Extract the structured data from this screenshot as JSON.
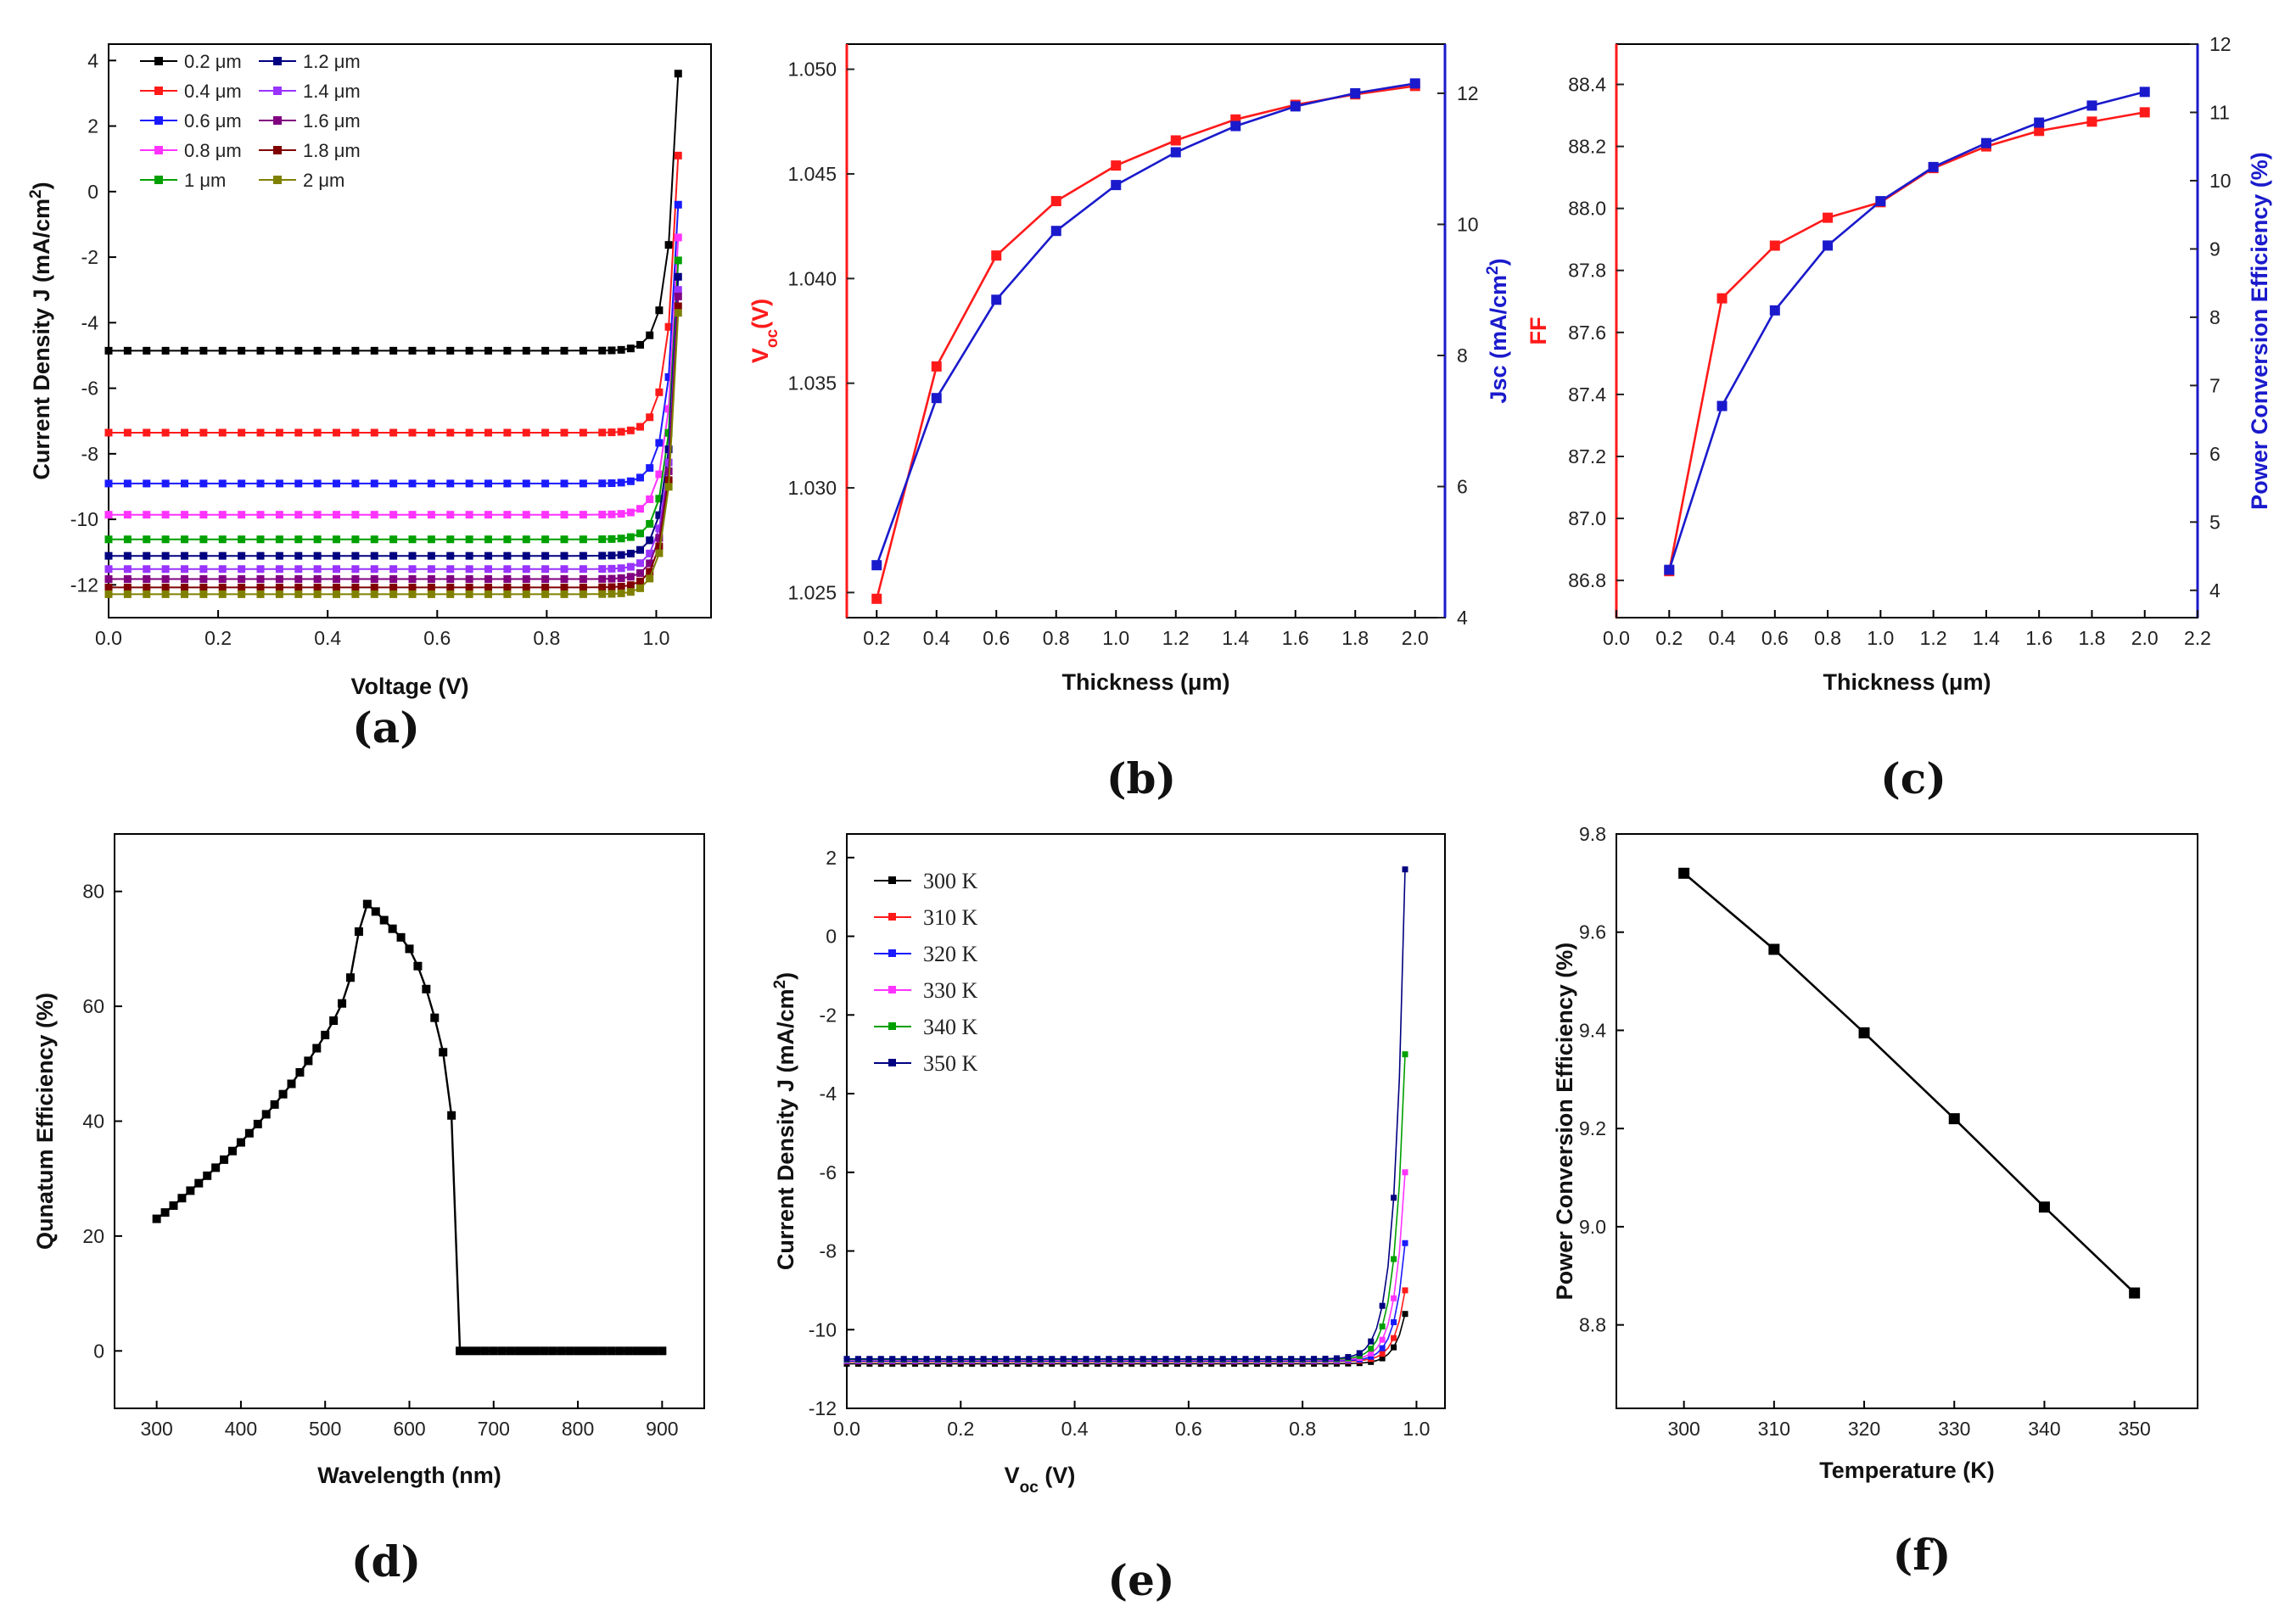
{
  "chart_data": [
    {
      "id": "a",
      "type": "line",
      "panel_label": "(a)",
      "xlabel": "Voltage (V)",
      "ylabel": "Current Density J (mA/cm<sup>2</sup>)",
      "xlim": [
        0,
        1.1
      ],
      "ylim": [
        -13,
        4.5
      ],
      "xticks": [
        "0.0",
        "0.2",
        "0.4",
        "0.6",
        "0.8",
        "1.0"
      ],
      "yticks": [
        "-12",
        "-10",
        "-8",
        "-6",
        "-4",
        "-2",
        "0",
        "2",
        "4"
      ],
      "legend_position": "top-left",
      "series": [
        {
          "name": "0.2 μm",
          "color": "#000000",
          "jsc": -4.85,
          "voc_end": 3.6
        },
        {
          "name": "0.4 μm",
          "color": "#ff1a1a",
          "jsc": -7.35,
          "voc_end": 1.1
        },
        {
          "name": "0.6 μm",
          "color": "#1a1aff",
          "jsc": -8.9,
          "voc_end": -0.4
        },
        {
          "name": "0.8 μm",
          "color": "#ff33ff",
          "jsc": -9.85,
          "voc_end": -1.4
        },
        {
          "name": "1 μm",
          "color": "#00a000",
          "jsc": -10.6,
          "voc_end": -2.1
        },
        {
          "name": "1.2 μm",
          "color": "#000080",
          "jsc": -11.1,
          "voc_end": -2.6
        },
        {
          "name": "1.4 μm",
          "color": "#9933ff",
          "jsc": -11.5,
          "voc_end": -3.0
        },
        {
          "name": "1.6 μm",
          "color": "#800080",
          "jsc": -11.8,
          "voc_end": -3.2
        },
        {
          "name": "1.8 μm",
          "color": "#800000",
          "jsc": -12.05,
          "voc_end": -3.5
        },
        {
          "name": "2 μm",
          "color": "#808000",
          "jsc": -12.25,
          "voc_end": -3.7
        }
      ]
    },
    {
      "id": "b",
      "type": "line",
      "panel_label": "(b)",
      "xlabel": "Thickness (μm)",
      "ylabel_left": "V<tspan baseline-shift='sub' font-size='19'>oc</tspan>(V)",
      "ylabel_right": "Jsc (mA/cm<tspan baseline-shift='super' font-size='19'>2</tspan>)",
      "xlim": [
        0.1,
        2.1
      ],
      "ylim_left": [
        1.0238,
        1.0512
      ],
      "ylim_right": [
        4,
        12.75
      ],
      "xticks": [
        "0.2",
        "0.4",
        "0.6",
        "0.8",
        "1.0",
        "1.2",
        "1.4",
        "1.6",
        "1.8",
        "2.0"
      ],
      "yticks_left": [
        "1.025",
        "1.030",
        "1.035",
        "1.040",
        "1.045",
        "1.050"
      ],
      "yticks_right": [
        "4",
        "6",
        "8",
        "10",
        "12"
      ],
      "x": [
        0.2,
        0.4,
        0.6,
        0.8,
        1.0,
        1.2,
        1.4,
        1.6,
        1.8,
        2.0
      ],
      "series": [
        {
          "axis": "left",
          "color": "#ff1a1a",
          "values": [
            1.0247,
            1.0358,
            1.0411,
            1.0437,
            1.0454,
            1.0466,
            1.0476,
            1.0483,
            1.0488,
            1.0492
          ]
        },
        {
          "axis": "right",
          "color": "#1a1acc",
          "values": [
            4.8,
            7.35,
            8.85,
            9.9,
            10.6,
            11.1,
            11.5,
            11.8,
            12.0,
            12.15
          ]
        }
      ]
    },
    {
      "id": "c",
      "type": "line",
      "panel_label": "(c)",
      "xlabel": "Thickness (μm)",
      "ylabel_left": "FF",
      "ylabel_right": "Power Conversion Efficiency (%)",
      "xlim": [
        0,
        2.2
      ],
      "ylim_left": [
        86.68,
        88.53
      ],
      "ylim_right": [
        3.6,
        12
      ],
      "xticks": [
        "0.0",
        "0.2",
        "0.4",
        "0.6",
        "0.8",
        "1.0",
        "1.2",
        "1.4",
        "1.6",
        "1.8",
        "2.0",
        "2.2"
      ],
      "yticks_left": [
        "86.8",
        "87.0",
        "87.2",
        "87.4",
        "87.6",
        "87.8",
        "88.0",
        "88.2",
        "88.4"
      ],
      "yticks_right": [
        "4",
        "5",
        "6",
        "7",
        "8",
        "9",
        "10",
        "11",
        "12"
      ],
      "x": [
        0.2,
        0.4,
        0.6,
        0.8,
        1.0,
        1.2,
        1.4,
        1.6,
        1.8,
        2.0
      ],
      "series": [
        {
          "axis": "left",
          "color": "#ff1a1a",
          "values": [
            86.83,
            87.71,
            87.88,
            87.97,
            88.02,
            88.13,
            88.2,
            88.25,
            88.28,
            88.31
          ]
        },
        {
          "axis": "right",
          "color": "#1a1acc",
          "values": [
            4.3,
            6.7,
            8.1,
            9.05,
            9.7,
            10.2,
            10.55,
            10.85,
            11.1,
            11.3
          ]
        }
      ]
    },
    {
      "id": "d",
      "type": "line",
      "panel_label": "(d)",
      "xlabel": "Wavelength (nm)",
      "ylabel": "Qunatum Efficiency (%)",
      "xlim": [
        250,
        950
      ],
      "ylim": [
        -10,
        90
      ],
      "xticks": [
        "300",
        "400",
        "500",
        "600",
        "700",
        "800",
        "900"
      ],
      "yticks": [
        "0",
        "20",
        "40",
        "60",
        "80"
      ],
      "x_start": 300,
      "x_step": 10,
      "values": [
        23,
        24.1,
        25.3,
        26.6,
        27.9,
        29.2,
        30.5,
        31.9,
        33.3,
        34.8,
        36.3,
        37.9,
        39.5,
        41.2,
        42.9,
        44.7,
        46.5,
        48.5,
        50.5,
        52.7,
        55,
        57.5,
        60.5,
        65,
        73,
        77.8,
        76.5,
        75,
        73.5,
        72,
        70,
        67,
        63,
        58,
        52,
        41,
        0,
        0,
        0,
        0,
        0,
        0,
        0,
        0,
        0,
        0,
        0,
        0,
        0,
        0,
        0,
        0,
        0,
        0,
        0,
        0,
        0,
        0,
        0,
        0,
        0
      ]
    },
    {
      "id": "e",
      "type": "line",
      "panel_label": "(e)",
      "xlabel": "V<tspan baseline-shift='sub' font-size='19'>oc</tspan> (V)",
      "ylabel": "Current Density J (mA/cm<sup>2</sup>)",
      "xlim": [
        0,
        1.05
      ],
      "ylim": [
        -12,
        2.6
      ],
      "xticks": [
        "0.0",
        "0.2",
        "0.4",
        "0.6",
        "0.8",
        "1.0"
      ],
      "yticks": [
        "-12",
        "-10",
        "-8",
        "-6",
        "-4",
        "-2",
        "0",
        "2"
      ],
      "legend_position": "top-left",
      "jsc": -10.55,
      "series": [
        {
          "name": "300 K",
          "color": "#000000",
          "end": -9.6,
          "v0": 0.955
        },
        {
          "name": "310 K",
          "color": "#ff1a1a",
          "end": -9.0,
          "v0": 0.945
        },
        {
          "name": "320 K",
          "color": "#1a1aff",
          "end": -7.8,
          "v0": 0.935
        },
        {
          "name": "330 K",
          "color": "#ff33ff",
          "end": -6.0,
          "v0": 0.925
        },
        {
          "name": "340 K",
          "color": "#00a000",
          "end": -3.0,
          "v0": 0.915
        },
        {
          "name": "350 K",
          "color": "#000080",
          "end": 1.7,
          "v0": 0.905
        }
      ]
    },
    {
      "id": "f",
      "type": "line",
      "panel_label": "(f)",
      "xlabel": "Temperature (K)",
      "ylabel": "Power Conversion Efficiency (%)",
      "xlim": [
        292.5,
        357
      ],
      "ylim": [
        8.63,
        9.8
      ],
      "xticks": [
        "300",
        "310",
        "320",
        "330",
        "340",
        "350"
      ],
      "yticks": [
        "8.8",
        "9.0",
        "9.2",
        "9.4",
        "9.6",
        "9.8"
      ],
      "x": [
        300,
        310,
        320,
        330,
        340,
        350
      ],
      "values": [
        9.72,
        9.565,
        9.395,
        9.22,
        9.04,
        8.865
      ],
      "color": "#000000"
    }
  ]
}
